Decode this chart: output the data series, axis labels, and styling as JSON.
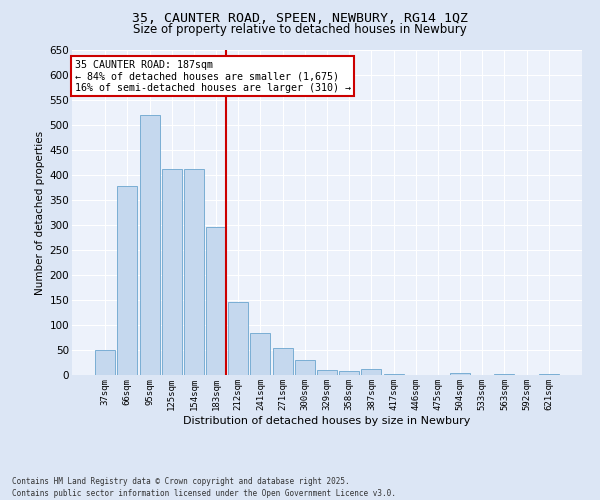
{
  "title1": "35, CAUNTER ROAD, SPEEN, NEWBURY, RG14 1QZ",
  "title2": "Size of property relative to detached houses in Newbury",
  "xlabel": "Distribution of detached houses by size in Newbury",
  "ylabel": "Number of detached properties",
  "footer1": "Contains HM Land Registry data © Crown copyright and database right 2025.",
  "footer2": "Contains public sector information licensed under the Open Government Licence v3.0.",
  "categories": [
    "37sqm",
    "66sqm",
    "95sqm",
    "125sqm",
    "154sqm",
    "183sqm",
    "212sqm",
    "241sqm",
    "271sqm",
    "300sqm",
    "329sqm",
    "358sqm",
    "387sqm",
    "417sqm",
    "446sqm",
    "475sqm",
    "504sqm",
    "533sqm",
    "563sqm",
    "592sqm",
    "621sqm"
  ],
  "values": [
    50,
    378,
    521,
    412,
    412,
    297,
    147,
    85,
    55,
    30,
    10,
    8,
    12,
    3,
    0,
    0,
    4,
    0,
    3,
    0,
    3
  ],
  "bar_color": "#c5d8ee",
  "bar_edge_color": "#7aaed4",
  "highlight_index": 5,
  "vline_color": "#cc0000",
  "annotation_title": "35 CAUNTER ROAD: 187sqm",
  "annotation_line1": "← 84% of detached houses are smaller (1,675)",
  "annotation_line2": "16% of semi-detached houses are larger (310) →",
  "annotation_box_color": "#cc0000",
  "ylim": [
    0,
    650
  ],
  "yticks": [
    0,
    50,
    100,
    150,
    200,
    250,
    300,
    350,
    400,
    450,
    500,
    550,
    600,
    650
  ],
  "bg_color": "#dce6f5",
  "plot_bg_color": "#edf2fb"
}
